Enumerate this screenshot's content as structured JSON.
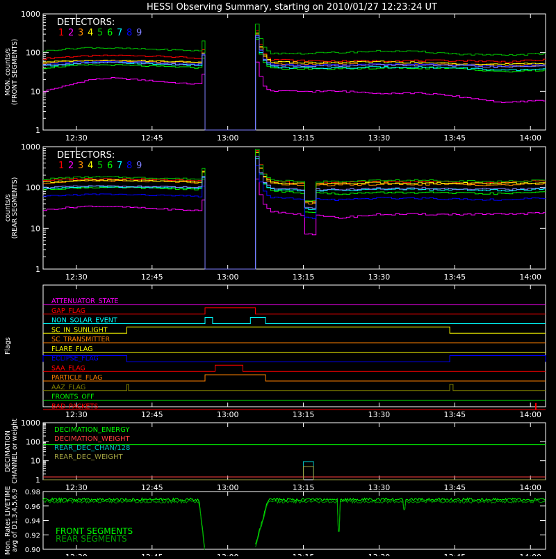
{
  "title": "HESSI Observing Summary, starting on 2010/01/27 12:23:24 UT",
  "time_ticks": [
    "12:30",
    "12:45",
    "13:00",
    "13:15",
    "13:30",
    "13:45",
    "14:00"
  ],
  "detector_colors": [
    "#ff0000",
    "#ff00ff",
    "#ff8c00",
    "#ffff00",
    "#00c000",
    "#00ff00",
    "#00ffff",
    "#0000ff",
    "#8080ff"
  ],
  "chart_data": [
    {
      "type": "line",
      "id": "front",
      "title": "",
      "ylabel": "MON. counts/s\n(FRONT SEGMENTS)",
      "yscale": "log",
      "ylim": [
        1,
        1000
      ],
      "yticks": [
        "1",
        "10",
        "100",
        "1000"
      ],
      "xlim": [
        "12:23:24",
        "14:03:00"
      ],
      "legend_title": "DETECTORS:",
      "legend_items": [
        "1",
        "2",
        "3",
        "4",
        "5",
        "6",
        "7",
        "8",
        "9"
      ],
      "gap": [
        "12:55:30",
        "13:05:30"
      ],
      "series": [
        {
          "detector": "1",
          "base": [
            70,
            78,
            82,
            85,
            84,
            80,
            75,
            65
          ],
          "after": [
            70,
            62,
            60,
            62,
            62,
            62,
            58,
            65
          ]
        },
        {
          "detector": "2",
          "base": [
            10,
            14,
            20,
            22,
            20,
            18,
            16,
            15
          ],
          "after": [
            10,
            10,
            10,
            9,
            9,
            7,
            5,
            6
          ]
        },
        {
          "detector": "3",
          "base": [
            55,
            60,
            62,
            62,
            60,
            58,
            57,
            55
          ],
          "after": [
            55,
            50,
            50,
            50,
            50,
            50,
            45,
            50
          ]
        },
        {
          "detector": "4",
          "base": [
            58,
            60,
            62,
            62,
            62,
            60,
            58,
            56
          ],
          "after": [
            60,
            55,
            55,
            58,
            55,
            52,
            50,
            52
          ]
        },
        {
          "detector": "5",
          "base": [
            110,
            125,
            135,
            130,
            125,
            120,
            115,
            110
          ],
          "after": [
            95,
            95,
            100,
            110,
            105,
            90,
            85,
            95
          ]
        },
        {
          "detector": "6",
          "base": [
            40,
            45,
            48,
            48,
            46,
            44,
            42,
            40
          ],
          "after": [
            40,
            38,
            38,
            40,
            40,
            38,
            32,
            35
          ]
        },
        {
          "detector": "7",
          "base": [
            45,
            50,
            55,
            55,
            53,
            50,
            48,
            47
          ],
          "after": [
            45,
            40,
            40,
            42,
            42,
            40,
            34,
            38
          ]
        },
        {
          "detector": "8",
          "base": [
            50,
            55,
            58,
            58,
            57,
            55,
            52,
            50
          ],
          "after": [
            50,
            48,
            48,
            50,
            50,
            48,
            44,
            48
          ]
        },
        {
          "detector": "9",
          "base": [
            48,
            52,
            55,
            55,
            54,
            52,
            50,
            49
          ],
          "after": [
            48,
            46,
            46,
            48,
            47,
            45,
            42,
            46
          ]
        }
      ]
    },
    {
      "type": "line",
      "id": "rear",
      "title": "",
      "ylabel": "counts/s\n(REAR SEGMENTS)",
      "yscale": "log",
      "ylim": [
        1,
        1000
      ],
      "yticks": [
        "1",
        "10",
        "100",
        "1000"
      ],
      "xlim": [
        "12:23:24",
        "14:03:00"
      ],
      "legend_title": "DETECTORS:",
      "legend_items": [
        "1",
        "2",
        "3",
        "4",
        "5",
        "6",
        "7",
        "8",
        "9"
      ],
      "gap": [
        "12:55:30",
        "13:05:30"
      ],
      "dip": [
        "13:15:00",
        "13:17:00"
      ],
      "series": [
        {
          "detector": "1",
          "base": [
            150,
            160,
            165,
            165,
            160,
            155,
            150,
            145
          ],
          "after": [
            150,
            130,
            130,
            140,
            140,
            135,
            130,
            150
          ]
        },
        {
          "detector": "2",
          "base": [
            28,
            32,
            35,
            34,
            32,
            30,
            28,
            27
          ],
          "after": [
            28,
            22,
            18,
            22,
            22,
            22,
            22,
            24
          ]
        },
        {
          "detector": "3",
          "base": [
            130,
            140,
            145,
            145,
            142,
            140,
            135,
            130
          ],
          "after": [
            130,
            115,
            115,
            120,
            120,
            118,
            115,
            125
          ]
        },
        {
          "detector": "4",
          "base": [
            135,
            145,
            150,
            150,
            148,
            145,
            140,
            135
          ],
          "after": [
            135,
            125,
            125,
            130,
            130,
            128,
            125,
            130
          ]
        },
        {
          "detector": "5",
          "base": [
            160,
            175,
            180,
            180,
            175,
            170,
            165,
            160
          ],
          "after": [
            160,
            140,
            140,
            150,
            150,
            145,
            140,
            150
          ]
        },
        {
          "detector": "6",
          "base": [
            90,
            95,
            100,
            100,
            98,
            95,
            92,
            90
          ],
          "after": [
            90,
            75,
            70,
            75,
            75,
            72,
            70,
            80
          ]
        },
        {
          "detector": "7",
          "base": [
            95,
            100,
            105,
            105,
            102,
            100,
            98,
            96
          ],
          "after": [
            95,
            85,
            85,
            90,
            90,
            88,
            85,
            92
          ]
        },
        {
          "detector": "8",
          "base": [
            60,
            65,
            68,
            68,
            66,
            64,
            62,
            60
          ],
          "after": [
            60,
            52,
            50,
            55,
            55,
            52,
            50,
            55
          ]
        },
        {
          "detector": "9",
          "base": [
            100,
            105,
            108,
            108,
            106,
            104,
            102,
            100
          ],
          "after": [
            100,
            90,
            90,
            95,
            95,
            92,
            90,
            95
          ]
        }
      ]
    },
    {
      "type": "line",
      "id": "flags",
      "title": "",
      "ylabel": "Flags",
      "xlim": [
        "12:23:24",
        "14:03:00"
      ],
      "flags": [
        {
          "name": "ATTENUATOR_STATE",
          "color": "#ff00ff",
          "on": []
        },
        {
          "name": "GAP_FLAG",
          "color": "#ff0000",
          "on": [
            [
              "12:55:30",
              "13:05:30"
            ]
          ]
        },
        {
          "name": "NON_SOLAR_EVENT",
          "color": "#00ffff",
          "on": [
            [
              "12:55:30",
              "12:57:00"
            ],
            [
              "13:04:30",
              "13:07:30"
            ]
          ]
        },
        {
          "name": "SC_IN_SUNLIGHT",
          "color": "#ffff00",
          "on": [
            [
              "12:40:00",
              "13:44:00"
            ]
          ]
        },
        {
          "name": "SC_TRANSMITTER",
          "color": "#ff8000",
          "on": []
        },
        {
          "name": "FLARE_FLAG",
          "color": "#ffff00",
          "on": []
        },
        {
          "name": "ECLIPSE_FLAG",
          "color": "#0000ff",
          "on": [
            [
              "12:23:24",
              "12:40:00"
            ],
            [
              "13:44:00",
              "14:03:00"
            ]
          ]
        },
        {
          "name": "SAA_FLAG",
          "color": "#ff0000",
          "on": [
            [
              "12:57:30",
              "13:03:00"
            ]
          ]
        },
        {
          "name": "PARTICLE_FLAG",
          "color": "#ff8000",
          "on": [
            [
              "12:55:30",
              "13:07:30"
            ]
          ]
        },
        {
          "name": "AAZ_FLAG",
          "color": "#808000",
          "on": [
            [
              "12:40:00",
              "12:40:20"
            ],
            [
              "13:44:00",
              "13:44:40"
            ]
          ]
        },
        {
          "name": "FRONTS_OFF",
          "color": "#00ff00",
          "on": []
        },
        {
          "name": "BAD_PACKETS",
          "color": "#ff0000",
          "on": [
            [
              "14:01:00",
              "14:01:10"
            ]
          ]
        }
      ]
    },
    {
      "type": "line",
      "id": "decimation",
      "title": "",
      "ylabel": "DECIMATION\nCHANNEL or weight",
      "yscale": "log",
      "ylim": [
        1,
        1000
      ],
      "yticks": [
        "1",
        "10",
        "100",
        "1000"
      ],
      "xlim": [
        "12:23:24",
        "14:03:00"
      ],
      "legend_items": [
        {
          "name": "DECIMATION_ENERGY",
          "color": "#00ff00"
        },
        {
          "name": "DECIMATION_WEIGHT",
          "color": "#ff4040"
        },
        {
          "name": "REAR_DEC_CHAN/128",
          "color": "#00c0c0"
        },
        {
          "name": "REAR_DEC_WEIGHT",
          "color": "#a0a040"
        }
      ],
      "series": [
        {
          "name": "DECIMATION_ENERGY",
          "value": 70
        },
        {
          "name": "DECIMATION_WEIGHT",
          "value": 1.4
        },
        {
          "name": "REAR_DEC_CHAN/128",
          "value": 1,
          "pulse": [
            "13:15:00",
            "13:17:00"
          ],
          "pulse_value": 9
        },
        {
          "name": "REAR_DEC_WEIGHT",
          "value": 1,
          "pulse": [
            "13:15:00",
            "13:17:00"
          ],
          "pulse_value": 5
        }
      ]
    },
    {
      "type": "line",
      "id": "livetime",
      "title": "",
      "ylabel": "Mon. Rates LIVETIME\navg of D1,3,4,5,6,9",
      "ylim": [
        0.9,
        0.98
      ],
      "yticks": [
        "0.90",
        "0.92",
        "0.94",
        "0.96",
        "0.98"
      ],
      "xlim": [
        "12:23:24",
        "14:03:00"
      ],
      "legend_items": [
        {
          "name": "FRONT SEGMENTS",
          "color": "#00ff00"
        },
        {
          "name": "REAR SEGMENTS",
          "color": "#00a000"
        }
      ],
      "series": [
        {
          "name": "FRONT SEGMENTS",
          "level": 0.969
        },
        {
          "name": "REAR SEGMENTS",
          "level": 0.966
        }
      ]
    }
  ]
}
